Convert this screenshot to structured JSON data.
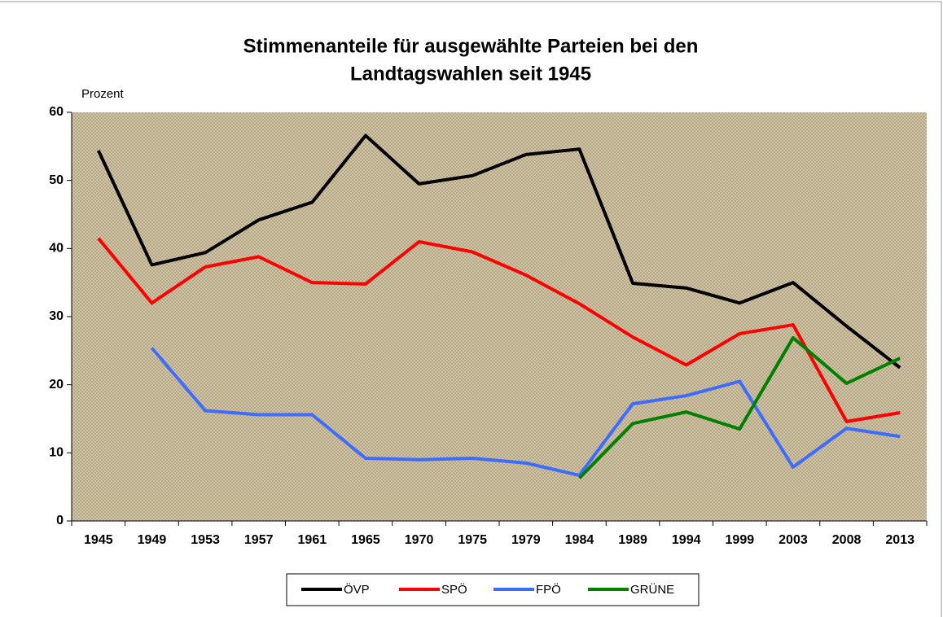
{
  "chart_data": {
    "type": "line",
    "title": [
      "Stimmenanteile für ausgewählte Parteien bei den",
      "Landtagswahlen seit 1945"
    ],
    "y_label": "Prozent",
    "categories": [
      "1945",
      "1949",
      "1953",
      "1957",
      "1961",
      "1965",
      "1970",
      "1975",
      "1979",
      "1984",
      "1989",
      "1994",
      "1999",
      "2003",
      "2008",
      "2013"
    ],
    "series": [
      {
        "name": "ÖVP",
        "color": "#000000",
        "values": [
          54.4,
          37.6,
          39.4,
          44.2,
          46.8,
          56.6,
          49.5,
          50.7,
          53.8,
          54.6,
          34.9,
          34.2,
          32.0,
          35.0,
          28.6,
          22.5
        ]
      },
      {
        "name": "SPÖ",
        "color": "#ff0000",
        "values": [
          41.5,
          32.0,
          37.3,
          38.8,
          35.0,
          34.8,
          41.0,
          39.5,
          36.1,
          31.9,
          27.0,
          22.9,
          27.5,
          28.8,
          14.6,
          15.9
        ]
      },
      {
        "name": "FPÖ",
        "color": "#3d6cff",
        "values": [
          null,
          25.4,
          16.2,
          15.6,
          15.6,
          9.2,
          9.0,
          9.2,
          8.5,
          6.7,
          17.2,
          18.4,
          20.5,
          7.9,
          13.6,
          12.4
        ]
      },
      {
        "name": "GRÜNE",
        "color": "#008000",
        "values": [
          null,
          null,
          null,
          null,
          null,
          null,
          null,
          null,
          null,
          6.3,
          14.3,
          16.0,
          13.5,
          26.9,
          20.2,
          23.9
        ]
      }
    ],
    "ylim": [
      0,
      60
    ],
    "yticks": [
      0,
      10,
      20,
      30,
      40,
      50,
      60
    ],
    "grid": false,
    "legend": "bottom"
  }
}
